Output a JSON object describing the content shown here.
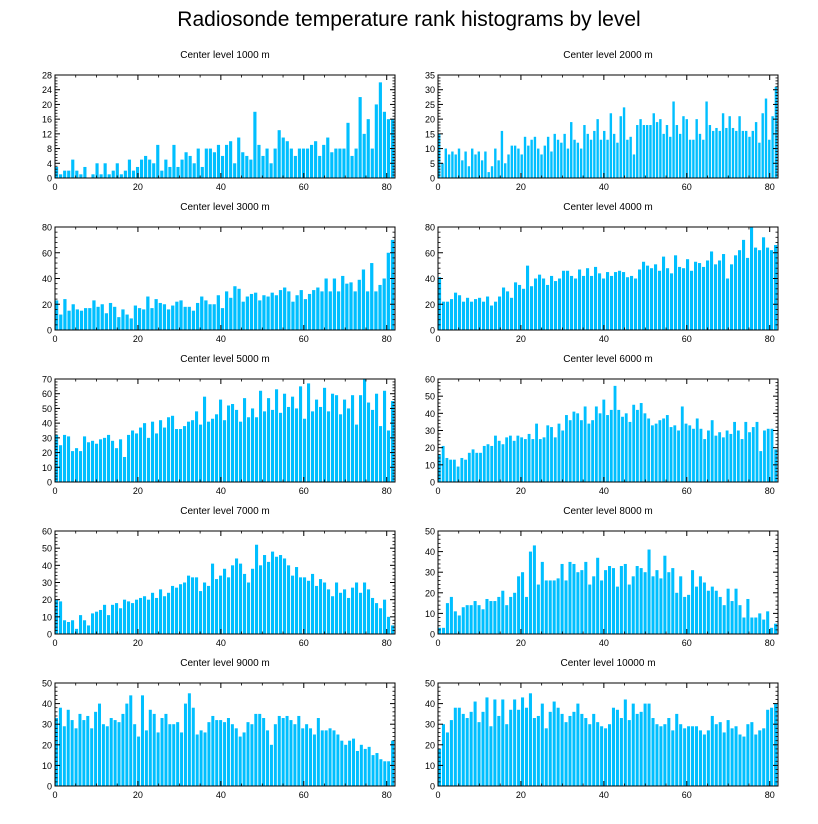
{
  "title": "Radiosonde temperature rank histograms by level",
  "bar_color": "#00BFFF",
  "chart_data": [
    {
      "type": "bar",
      "title": "Center level 1000 m",
      "xlim": [
        0,
        82
      ],
      "ylim": [
        0,
        28
      ],
      "yticks": [
        0,
        4,
        8,
        12,
        16,
        20,
        24,
        28
      ],
      "xticks": [
        0,
        20,
        40,
        60,
        80
      ],
      "values": [
        3,
        1,
        2,
        2,
        5,
        2,
        1,
        3,
        0,
        1,
        4,
        1,
        4,
        1,
        2,
        4,
        1,
        2,
        5,
        2,
        3,
        5,
        6,
        5,
        4,
        9,
        2,
        5,
        3,
        9,
        3,
        5,
        7,
        6,
        4,
        8,
        3,
        8,
        8,
        7,
        9,
        6,
        9,
        10,
        4,
        11,
        7,
        6,
        5,
        18,
        9,
        6,
        8,
        4,
        8,
        13,
        11,
        10,
        8,
        6,
        8,
        8,
        8,
        9,
        10,
        6,
        9,
        11,
        7,
        8,
        8,
        8,
        15,
        6,
        8,
        22,
        12,
        16,
        8,
        20,
        26,
        18,
        16,
        16
      ]
    },
    {
      "type": "bar",
      "title": "Center level 2000 m",
      "xlim": [
        0,
        82
      ],
      "ylim": [
        0,
        35
      ],
      "yticks": [
        0,
        5,
        10,
        15,
        20,
        25,
        30,
        35
      ],
      "xticks": [
        0,
        20,
        40,
        60,
        80
      ],
      "values": [
        15,
        5,
        10,
        8,
        9,
        8,
        10,
        6,
        9,
        4,
        10,
        8,
        9,
        6,
        9,
        2,
        4,
        10,
        6,
        16,
        5,
        8,
        11,
        11,
        10,
        8,
        14,
        11,
        13,
        14,
        10,
        8,
        11,
        14,
        9,
        15,
        13,
        12,
        15,
        10,
        19,
        13,
        12,
        10,
        18,
        15,
        13,
        16,
        20,
        13,
        16,
        13,
        22,
        15,
        12,
        21,
        24,
        13,
        14,
        8,
        18,
        20,
        18,
        18,
        18,
        22,
        19,
        20,
        15,
        18,
        14,
        26,
        18,
        15,
        21,
        20,
        13,
        13,
        20,
        15,
        13,
        26,
        18,
        16,
        17,
        16,
        22,
        17,
        21,
        17,
        16,
        21,
        16,
        16,
        14,
        16,
        19,
        12,
        22,
        27,
        13,
        21,
        31
      ]
    },
    {
      "type": "bar",
      "title": "Center level 3000 m",
      "xlim": [
        0,
        82
      ],
      "ylim": [
        0,
        80
      ],
      "yticks": [
        0,
        20,
        40,
        60,
        80
      ],
      "xticks": [
        0,
        20,
        40,
        60,
        80
      ],
      "values": [
        23,
        12,
        24,
        15,
        20,
        16,
        15,
        17,
        17,
        23,
        18,
        20,
        13,
        21,
        18,
        10,
        16,
        12,
        9,
        19,
        17,
        16,
        26,
        17,
        24,
        21,
        20,
        16,
        19,
        22,
        23,
        18,
        18,
        15,
        21,
        26,
        23,
        20,
        20,
        27,
        17,
        30,
        25,
        34,
        32,
        22,
        26,
        28,
        29,
        23,
        27,
        26,
        29,
        27,
        31,
        33,
        30,
        22,
        27,
        31,
        24,
        28,
        31,
        33,
        30,
        40,
        30,
        40,
        30,
        42,
        36,
        37,
        30,
        39,
        47,
        30,
        52,
        30,
        35,
        40,
        60,
        70
      ]
    },
    {
      "type": "bar",
      "title": "Center level 4000 m",
      "xlim": [
        0,
        82
      ],
      "ylim": [
        0,
        80
      ],
      "yticks": [
        0,
        20,
        40,
        60,
        80
      ],
      "xticks": [
        0,
        20,
        40,
        60,
        80
      ],
      "values": [
        41,
        22,
        22,
        24,
        29,
        27,
        22,
        25,
        22,
        24,
        25,
        22,
        26,
        19,
        22,
        26,
        33,
        30,
        25,
        37,
        35,
        32,
        50,
        34,
        40,
        43,
        40,
        35,
        42,
        38,
        40,
        46,
        46,
        42,
        40,
        47,
        42,
        48,
        42,
        49,
        44,
        40,
        45,
        42,
        45,
        46,
        45,
        41,
        42,
        40,
        47,
        53,
        50,
        48,
        51,
        46,
        57,
        48,
        44,
        58,
        49,
        48,
        55,
        46,
        53,
        52,
        49,
        54,
        61,
        51,
        54,
        59,
        40,
        51,
        58,
        62,
        70,
        56,
        80,
        64,
        62,
        72,
        64,
        62,
        66
      ]
    },
    {
      "type": "bar",
      "title": "Center level 5000 m",
      "xlim": [
        0,
        82
      ],
      "ylim": [
        0,
        70
      ],
      "yticks": [
        0,
        10,
        20,
        30,
        40,
        50,
        60,
        70
      ],
      "xticks": [
        0,
        20,
        40,
        60,
        80
      ],
      "values": [
        32,
        25,
        32,
        31,
        21,
        23,
        21,
        31,
        27,
        28,
        26,
        29,
        30,
        32,
        28,
        23,
        29,
        17,
        32,
        35,
        33,
        37,
        40,
        30,
        41,
        33,
        42,
        37,
        44,
        45,
        36,
        36,
        38,
        41,
        42,
        48,
        39,
        58,
        41,
        43,
        46,
        56,
        42,
        52,
        53,
        49,
        41,
        57,
        44,
        50,
        44,
        62,
        48,
        57,
        49,
        63,
        47,
        60,
        51,
        58,
        50,
        65,
        43,
        67,
        48,
        56,
        51,
        64,
        48,
        60,
        59,
        46,
        56,
        50,
        59,
        39,
        59,
        70,
        54,
        49,
        60,
        38,
        62,
        35,
        55
      ]
    },
    {
      "type": "bar",
      "title": "Center level 6000 m",
      "xlim": [
        0,
        82
      ],
      "ylim": [
        0,
        60
      ],
      "yticks": [
        0,
        10,
        20,
        30,
        40,
        50,
        60
      ],
      "xticks": [
        0,
        20,
        40,
        60,
        80
      ],
      "values": [
        16,
        21,
        14,
        13,
        13,
        9,
        14,
        13,
        17,
        19,
        17,
        17,
        21,
        22,
        21,
        27,
        24,
        22,
        26,
        27,
        24,
        27,
        26,
        25,
        28,
        25,
        34,
        25,
        26,
        33,
        32,
        26,
        34,
        30,
        39,
        36,
        41,
        40,
        36,
        44,
        34,
        36,
        44,
        40,
        48,
        39,
        42,
        56,
        42,
        38,
        40,
        35,
        45,
        42,
        46,
        40,
        37,
        33,
        34,
        36,
        37,
        39,
        32,
        33,
        30,
        44,
        34,
        33,
        31,
        37,
        31,
        25,
        30,
        36,
        27,
        29,
        26,
        30,
        28,
        35,
        30,
        25,
        35,
        29,
        32,
        35,
        18,
        30,
        31,
        31,
        19
      ]
    },
    {
      "type": "bar",
      "title": "Center level 7000 m",
      "xlim": [
        0,
        82
      ],
      "ylim": [
        0,
        60
      ],
      "yticks": [
        0,
        10,
        20,
        30,
        40,
        50,
        60
      ],
      "xticks": [
        0,
        20,
        40,
        60,
        80
      ],
      "values": [
        20,
        19,
        8,
        7,
        8,
        3,
        11,
        8,
        5,
        12,
        13,
        14,
        17,
        11,
        17,
        18,
        15,
        20,
        19,
        18,
        20,
        21,
        22,
        20,
        24,
        21,
        26,
        22,
        24,
        28,
        27,
        29,
        30,
        34,
        33,
        33,
        25,
        30,
        28,
        41,
        32,
        34,
        38,
        33,
        40,
        44,
        41,
        35,
        30,
        38,
        52,
        40,
        46,
        42,
        48,
        45,
        46,
        44,
        40,
        34,
        39,
        33,
        33,
        31,
        35,
        28,
        32,
        30,
        26,
        22,
        30,
        24,
        26,
        21,
        27,
        30,
        24,
        30,
        26,
        21,
        18,
        15,
        20,
        10,
        5
      ]
    },
    {
      "type": "bar",
      "title": "Center level 8000 m",
      "xlim": [
        0,
        82
      ],
      "ylim": [
        0,
        50
      ],
      "yticks": [
        0,
        10,
        20,
        30,
        40,
        50
      ],
      "xticks": [
        0,
        20,
        40,
        60,
        80
      ],
      "values": [
        3,
        3,
        15,
        18,
        11,
        9,
        13,
        14,
        14,
        16,
        14,
        12,
        17,
        16,
        16,
        18,
        21,
        14,
        18,
        20,
        28,
        30,
        18,
        40,
        43,
        24,
        35,
        26,
        26,
        26,
        27,
        34,
        26,
        35,
        34,
        30,
        31,
        35,
        24,
        28,
        37,
        26,
        31,
        33,
        32,
        23,
        33,
        34,
        24,
        28,
        33,
        32,
        30,
        41,
        28,
        31,
        27,
        38,
        30,
        32,
        20,
        28,
        18,
        19,
        31,
        23,
        28,
        25,
        21,
        23,
        21,
        18,
        14,
        22,
        16,
        22,
        14,
        8,
        17,
        8,
        8,
        10,
        7,
        11,
        3,
        5
      ]
    },
    {
      "type": "bar",
      "title": "Center level 9000 m",
      "xlim": [
        0,
        82
      ],
      "ylim": [
        0,
        50
      ],
      "yticks": [
        0,
        10,
        20,
        30,
        40,
        50
      ],
      "xticks": [
        0,
        20,
        40,
        60,
        80
      ],
      "values": [
        33,
        38,
        29,
        37,
        32,
        28,
        35,
        32,
        34,
        28,
        36,
        40,
        30,
        29,
        33,
        32,
        31,
        35,
        40,
        44,
        30,
        24,
        44,
        27,
        37,
        35,
        26,
        33,
        35,
        30,
        30,
        31,
        26,
        40,
        45,
        38,
        25,
        27,
        26,
        31,
        34,
        32,
        32,
        31,
        33,
        30,
        28,
        24,
        26,
        31,
        30,
        35,
        35,
        33,
        27,
        20,
        30,
        34,
        33,
        34,
        32,
        30,
        34,
        28,
        30,
        28,
        25,
        33,
        27,
        27,
        28,
        27,
        25,
        22,
        20,
        22,
        23,
        17,
        20,
        18,
        19,
        15,
        16,
        13,
        12,
        12,
        22
      ]
    },
    {
      "type": "bar",
      "title": "Center level 10000 m",
      "xlim": [
        0,
        82
      ],
      "ylim": [
        0,
        50
      ],
      "yticks": [
        0,
        10,
        20,
        30,
        40,
        50
      ],
      "xticks": [
        0,
        20,
        40,
        60,
        80
      ],
      "values": [
        18,
        30,
        26,
        32,
        38,
        38,
        35,
        33,
        36,
        41,
        31,
        36,
        43,
        29,
        42,
        34,
        42,
        30,
        37,
        42,
        37,
        43,
        38,
        45,
        33,
        34,
        40,
        28,
        36,
        41,
        38,
        35,
        31,
        34,
        36,
        40,
        35,
        33,
        30,
        35,
        31,
        29,
        28,
        30,
        38,
        37,
        33,
        42,
        32,
        40,
        35,
        36,
        40,
        40,
        33,
        30,
        29,
        30,
        33,
        27,
        35,
        30,
        28,
        29,
        29,
        29,
        27,
        25,
        27,
        34,
        30,
        31,
        26,
        32,
        28,
        29,
        25,
        24,
        30,
        31,
        25,
        27,
        28,
        37,
        38,
        40
      ]
    }
  ]
}
